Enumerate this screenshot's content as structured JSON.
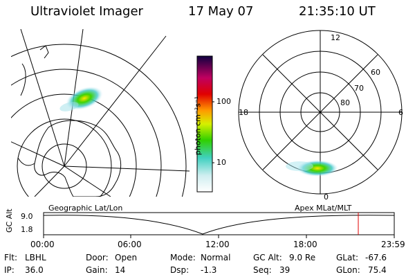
{
  "header": {
    "instrument": "Ultraviolet Imager",
    "date": "17 May 07",
    "time": "21:35:10 UT"
  },
  "colorbar": {
    "unit_label": "photon cm⁻²s⁻¹",
    "ticks": [
      "100",
      "10"
    ]
  },
  "polar": {
    "mlt_labels": {
      "top": "12",
      "left": "18",
      "right": "6",
      "bottom": "0"
    },
    "lat_labels": [
      "60",
      "70",
      "80"
    ]
  },
  "orbit": {
    "axis_label": "GC Alt",
    "alt_max": "9.0",
    "alt_min": "1.8",
    "left_label": "Geographic Lat/Lon",
    "right_label": "Apex MLat/MLT",
    "time_ticks": [
      "00:00",
      "06:00",
      "12:00",
      "18:00",
      "23:59"
    ]
  },
  "status": {
    "row1": [
      {
        "k": "Flt:",
        "v": "LBHL"
      },
      {
        "k": "Door:",
        "v": "Open"
      },
      {
        "k": "Mode:",
        "v": "Normal"
      },
      {
        "k": "GC Alt:",
        "v": "9.0 Re"
      },
      {
        "k": "GLat:",
        "v": "-67.6"
      }
    ],
    "row2": [
      {
        "k": "IP:",
        "v": "36.0"
      },
      {
        "k": "Gain:",
        "v": "14"
      },
      {
        "k": "Dsp:",
        "v": "-1.3"
      },
      {
        "k": "Seq:",
        "v": "39"
      },
      {
        "k": "GLon:",
        "v": "75.4"
      }
    ]
  },
  "colors": {
    "aurora_core": "#ffe600",
    "aurora_mid": "#3fd300",
    "aurora_edge": "#40c8c8",
    "marker": "#e00000"
  }
}
